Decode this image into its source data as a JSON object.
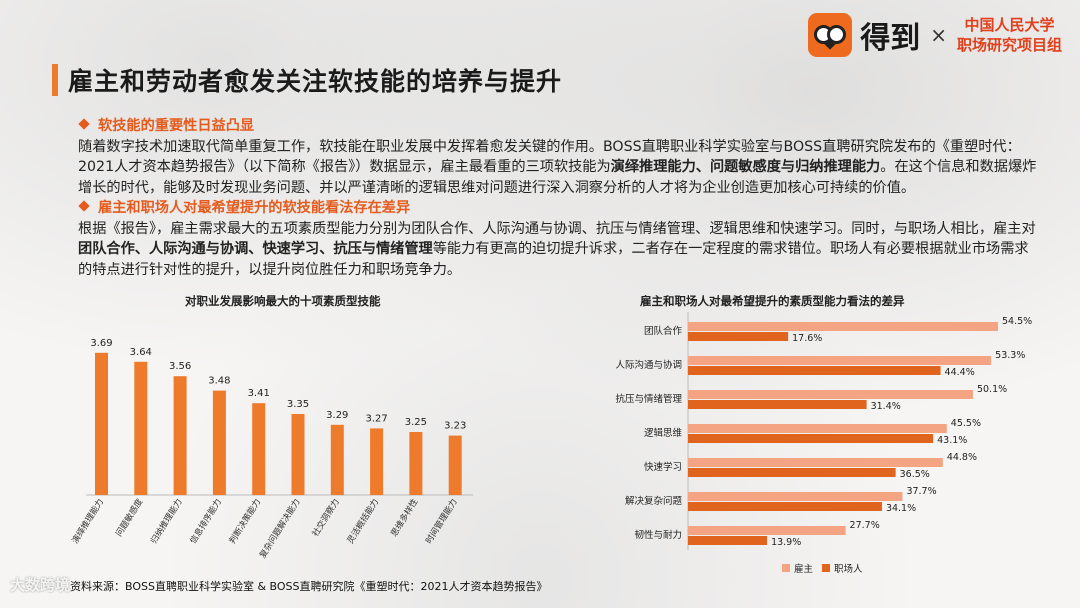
{
  "page": {
    "title": "雇主和劳动者愈发关注软技能的培养与提升",
    "brand_name": "得到",
    "brand_x": "×",
    "brand_partner_line1": "中国人民大学",
    "brand_partner_line2": "职场研究项目组"
  },
  "section1": {
    "heading": "软技能的重要性日益凸显",
    "p1": "随着数字技术加速取代简单重复工作，软技能在职业发展中发挥着愈发关键的作用。BOSS直聘职业科学实验室与BOSS直聘研究院发布的《重塑时代：2021人才资本趋势报告》（以下简称《报告》）数据显示，雇主最看重的三项软技能为",
    "bold": "演绎推理能力、问题敏感度与归纳推理能力",
    "p2": "。在这个信息和数据爆炸增长的时代，能够及时发现业务问题、并以严谨清晰的逻辑思维对问题进行深入洞察分析的人才将为企业创造更加核心可持续的价值。"
  },
  "section2": {
    "heading": "雇主和职场人对最希望提升的软技能看法存在差异",
    "p1": "根据《报告》，雇主需求最大的五项素质型能力分别为团队合作、人际沟通与协调、抗压与情绪管理、逻辑思维和快速学习。同时，与职场人相比，雇主对",
    "bold": "团队合作、人际沟通与协调、快速学习、抗压与情绪管理",
    "p2": "等能力有更高的迫切提升诉求，二者存在一定程度的需求错位。职场人有必要根据就业市场需求的特点进行针对性的提升，以提升岗位胜任力和职场竞争力。"
  },
  "footer": "资料来源：BOSS直聘职业科学实验室 & BOSS直聘研究院《重塑时代：2021人才资本趋势报告》",
  "watermark": "大数跨境",
  "colors": {
    "accent": "#ee7a2b",
    "bar_employer": "#f4a482",
    "bar_worker": "#e0631e"
  },
  "chart_data": [
    {
      "type": "bar",
      "title": "对职业发展影响最大的十项素质型技能",
      "categories": [
        "演绎推理能力",
        "问题敏感度",
        "归纳推理能力",
        "信息排序能力",
        "判断决策能力",
        "复杂问题解决能力",
        "社交洞察力",
        "灵活概括能力",
        "思维多样性",
        "时间管理能力"
      ],
      "values": [
        3.69,
        3.64,
        3.56,
        3.48,
        3.41,
        3.35,
        3.29,
        3.27,
        3.25,
        3.23
      ],
      "value_labels": [
        "3.69",
        "3.64",
        "3.56",
        "3.48",
        "3.41",
        "3.35",
        "3.29",
        "3.27",
        "3.25",
        "3.23"
      ],
      "ylim": [
        2.9,
        3.75
      ],
      "grid": false
    },
    {
      "type": "bar",
      "orientation": "horizontal",
      "title": "雇主和职场人对最希望提升的素质型能力看法的差异",
      "categories": [
        "团队合作",
        "人际沟通与协调",
        "抗压与情绪管理",
        "逻辑思维",
        "快速学习",
        "解决复杂问题",
        "韧性与耐力"
      ],
      "series": [
        {
          "name": "雇主",
          "values": [
            54.5,
            53.3,
            50.1,
            45.5,
            44.8,
            37.7,
            27.7
          ],
          "labels": [
            "54.5%",
            "53.3%",
            "50.1%",
            "45.5%",
            "44.8%",
            "37.7%",
            "27.7%"
          ]
        },
        {
          "name": "职场人",
          "values": [
            17.6,
            44.4,
            31.4,
            43.1,
            36.5,
            34.1,
            13.9
          ],
          "labels": [
            "17.6%",
            "44.4%",
            "31.4%",
            "43.1%",
            "36.5%",
            "34.1%",
            "13.9%"
          ]
        }
      ],
      "xlim": [
        0,
        60
      ],
      "legend": "bottom",
      "grid": false
    }
  ]
}
